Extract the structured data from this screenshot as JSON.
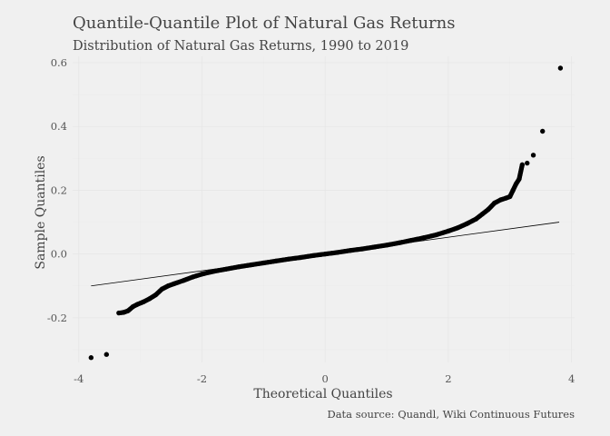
{
  "chart_data": {
    "type": "scatter",
    "title": "Quantile-Quantile Plot of Natural Gas Returns",
    "subtitle": "Distribution of Natural Gas Returns, 1990 to 2019",
    "xlabel": "Theoretical Quantiles",
    "ylabel": "Sample Quantiles",
    "caption": "Data source: Quandl, Wiki Continuous Futures",
    "xlim": [
      -4.1,
      4.05
    ],
    "ylim": [
      -0.34,
      0.62
    ],
    "x_ticks": [
      {
        "value": -4,
        "label": "-4"
      },
      {
        "value": -2,
        "label": "-2"
      },
      {
        "value": 0,
        "label": "0"
      },
      {
        "value": 2,
        "label": "2"
      },
      {
        "value": 4,
        "label": "4"
      }
    ],
    "y_ticks": [
      {
        "value": -0.2,
        "label": "-0.2"
      },
      {
        "value": 0,
        "label": "0.0"
      },
      {
        "value": 0.2,
        "label": "0.2"
      },
      {
        "value": 0.4,
        "label": "0.4"
      },
      {
        "value": 0.6,
        "label": "0.6"
      }
    ],
    "grid": true,
    "reference_line": {
      "x": [
        -3.8,
        3.8
      ],
      "y": [
        -0.1,
        0.1
      ]
    },
    "points": [
      [
        -3.8,
        -0.325
      ],
      [
        -3.55,
        -0.315
      ],
      [
        -3.35,
        -0.185
      ],
      [
        -3.27,
        -0.183
      ],
      [
        -3.2,
        -0.178
      ],
      [
        -3.12,
        -0.165
      ],
      [
        -3.05,
        -0.158
      ],
      [
        -2.95,
        -0.15
      ],
      [
        -2.85,
        -0.14
      ],
      [
        -2.75,
        -0.128
      ],
      [
        -2.65,
        -0.11
      ],
      [
        -2.55,
        -0.1
      ],
      [
        -2.45,
        -0.093
      ],
      [
        -2.3,
        -0.083
      ],
      [
        -2.15,
        -0.072
      ],
      [
        -2.0,
        -0.063
      ],
      [
        -1.8,
        -0.054
      ],
      [
        -1.6,
        -0.047
      ],
      [
        -1.4,
        -0.04
      ],
      [
        -1.2,
        -0.034
      ],
      [
        -1.0,
        -0.028
      ],
      [
        -0.8,
        -0.022
      ],
      [
        -0.6,
        -0.016
      ],
      [
        -0.4,
        -0.011
      ],
      [
        -0.2,
        -0.005
      ],
      [
        0.0,
        0.0
      ],
      [
        0.2,
        0.005
      ],
      [
        0.4,
        0.011
      ],
      [
        0.6,
        0.016
      ],
      [
        0.8,
        0.022
      ],
      [
        1.0,
        0.028
      ],
      [
        1.2,
        0.035
      ],
      [
        1.4,
        0.043
      ],
      [
        1.6,
        0.051
      ],
      [
        1.8,
        0.06
      ],
      [
        2.0,
        0.072
      ],
      [
        2.15,
        0.082
      ],
      [
        2.3,
        0.095
      ],
      [
        2.45,
        0.11
      ],
      [
        2.55,
        0.125
      ],
      [
        2.65,
        0.14
      ],
      [
        2.75,
        0.16
      ],
      [
        2.85,
        0.17
      ],
      [
        2.93,
        0.175
      ],
      [
        3.0,
        0.18
      ],
      [
        3.05,
        0.2
      ],
      [
        3.1,
        0.22
      ],
      [
        3.15,
        0.235
      ],
      [
        3.2,
        0.28
      ],
      [
        3.28,
        0.285
      ],
      [
        3.38,
        0.31
      ],
      [
        3.53,
        0.385
      ],
      [
        3.82,
        0.583
      ]
    ]
  }
}
